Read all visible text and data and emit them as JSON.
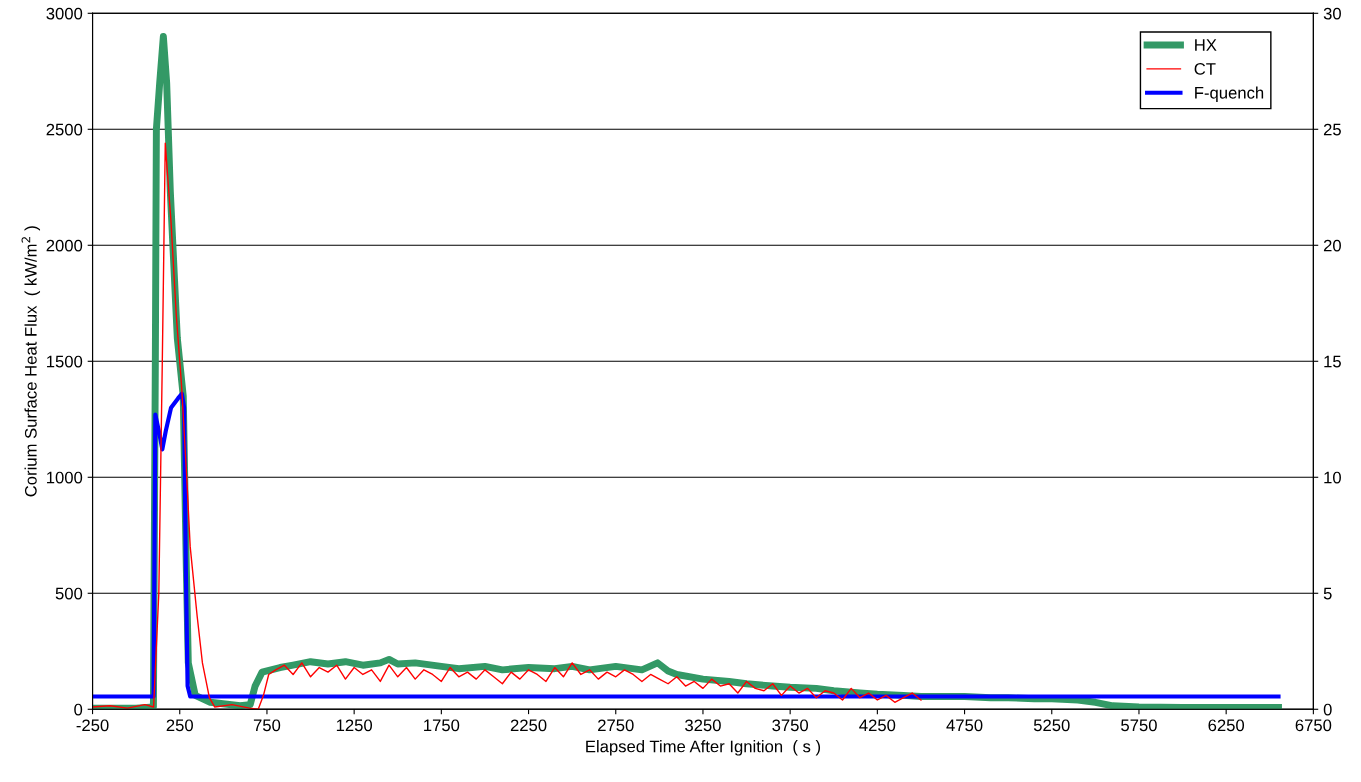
{
  "chart_data": {
    "type": "line",
    "xlabel": "Elapsed Time After Ignition  ( s )",
    "ylabel": "Corium Surface Heat Flux  ( kW/m$^{2}$ )",
    "xlim": [
      -250,
      6750
    ],
    "xticks": [
      -250,
      250,
      750,
      1250,
      1750,
      2250,
      2750,
      3250,
      3750,
      4250,
      4750,
      5250,
      5750,
      6250,
      6750
    ],
    "ylim": [
      0,
      3000
    ],
    "yticks": [
      0,
      500,
      1000,
      1500,
      2000,
      2500,
      3000
    ],
    "y2lim": [
      0,
      30
    ],
    "y2ticks": [
      0,
      5,
      10,
      15,
      20,
      25,
      30
    ],
    "grid": "y",
    "legend": "top right",
    "marker": "none",
    "line_style": "solid",
    "series": [
      {
        "name": "HX",
        "color": "#339966",
        "x": [
          -250,
          0,
          99,
          110,
          116,
          135,
          156,
          175,
          196,
          236,
          270,
          288,
          299,
          339,
          425,
          596,
          654,
          682,
          722,
          825,
          900,
          1000,
          1100,
          1200,
          1300,
          1400,
          1450,
          1500,
          1600,
          1750,
          1850,
          2000,
          2100,
          2250,
          2400,
          2500,
          2600,
          2750,
          2900,
          2990,
          3050,
          3100,
          3250,
          3400,
          3500,
          3650,
          3750,
          3900,
          4000,
          4150,
          4250,
          4400,
          4500,
          4650,
          4750,
          4900,
          5000,
          5150,
          5250,
          5400,
          5500,
          5600,
          5750,
          6000,
          6250,
          6550
        ],
        "values": [
          5,
          5,
          10,
          1500,
          2500,
          2700,
          2900,
          2700,
          2230,
          1600,
          1350,
          600,
          200,
          60,
          30,
          15,
          20,
          100,
          160,
          180,
          190,
          205,
          195,
          205,
          190,
          200,
          215,
          195,
          200,
          185,
          175,
          185,
          170,
          180,
          175,
          185,
          170,
          185,
          170,
          200,
          165,
          150,
          130,
          120,
          110,
          100,
          95,
          90,
          80,
          70,
          65,
          60,
          55,
          55,
          55,
          50,
          50,
          45,
          45,
          40,
          30,
          15,
          10,
          8,
          8,
          8
        ]
      },
      {
        "name": "CT",
        "color": "#ff0000",
        "x": [
          -250,
          -150,
          -50,
          50,
          100,
          130,
          150,
          167,
          200,
          230,
          260,
          290,
          310,
          350,
          380,
          420,
          450,
          550,
          650,
          700,
          730,
          760,
          800,
          850,
          900,
          950,
          1000,
          1050,
          1100,
          1150,
          1200,
          1250,
          1300,
          1350,
          1400,
          1450,
          1500,
          1550,
          1600,
          1650,
          1700,
          1750,
          1800,
          1850,
          1900,
          1950,
          2000,
          2050,
          2100,
          2150,
          2200,
          2250,
          2300,
          2350,
          2400,
          2450,
          2500,
          2550,
          2600,
          2650,
          2700,
          2750,
          2800,
          2850,
          2900,
          2950,
          3000,
          3050,
          3100,
          3150,
          3200,
          3250,
          3300,
          3350,
          3400,
          3450,
          3500,
          3550,
          3600,
          3650,
          3700,
          3750,
          3800,
          3850,
          3900,
          3950,
          4000,
          4050,
          4100,
          4150,
          4200,
          4250,
          4300,
          4350,
          4400,
          4450,
          4500
        ],
        "values": [
          10,
          15,
          5,
          20,
          10,
          500,
          1500,
          2440,
          2100,
          1700,
          1400,
          1000,
          700,
          400,
          200,
          50,
          10,
          20,
          5,
          0,
          60,
          150,
          170,
          190,
          150,
          200,
          140,
          180,
          160,
          190,
          130,
          180,
          150,
          170,
          120,
          190,
          140,
          180,
          130,
          170,
          150,
          120,
          180,
          140,
          160,
          130,
          170,
          140,
          110,
          160,
          130,
          170,
          150,
          120,
          180,
          140,
          200,
          150,
          170,
          130,
          160,
          140,
          170,
          150,
          120,
          150,
          130,
          110,
          140,
          100,
          120,
          90,
          130,
          100,
          110,
          70,
          120,
          90,
          80,
          110,
          60,
          100,
          70,
          90,
          50,
          80,
          70,
          40,
          90,
          50,
          70,
          40,
          60,
          30,
          50,
          70,
          40
        ]
      },
      {
        "name": "F-quench",
        "color": "#0000ff",
        "x": [
          -250,
          100,
          110,
          130,
          150,
          170,
          200,
          240,
          262,
          275,
          285,
          295,
          310,
          6550
        ],
        "values": [
          55,
          55,
          1270,
          1200,
          1120,
          1200,
          1300,
          1340,
          1360,
          1300,
          600,
          100,
          55,
          55
        ]
      }
    ]
  }
}
